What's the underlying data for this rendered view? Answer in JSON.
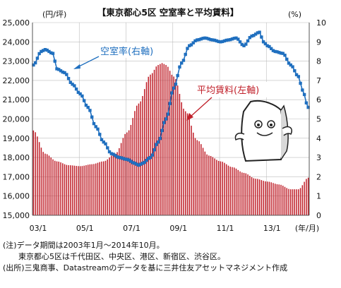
{
  "chart_data": {
    "type": "bar+line",
    "title": "【東京都心5区 空室率と平均賃料】",
    "left_axis": {
      "unit": "(円/坪)",
      "min": 15000,
      "max": 25000,
      "step": 1000,
      "ticks": [
        "15,000",
        "16,000",
        "17,000",
        "18,000",
        "19,000",
        "20,000",
        "21,000",
        "22,000",
        "23,000",
        "24,000",
        "25,000"
      ]
    },
    "right_axis": {
      "unit": "(%)",
      "min": 0,
      "max": 10,
      "step": 1,
      "ticks": [
        "0",
        "1",
        "2",
        "3",
        "4",
        "5",
        "6",
        "7",
        "8",
        "9",
        "10"
      ]
    },
    "x_axis": {
      "unit": "(年/月)",
      "ticks": [
        {
          "label": "03/1",
          "index": 0
        },
        {
          "label": "05/1",
          "index": 24
        },
        {
          "label": "07/1",
          "index": 48
        },
        {
          "label": "09/1",
          "index": 72
        },
        {
          "label": "11/1",
          "index": 96
        },
        {
          "label": "13/1",
          "index": 120
        }
      ]
    },
    "months_count": 142,
    "grid": true,
    "rent_series": {
      "name": "平均賃料(左軸)",
      "axis": "left",
      "color": "#c0202a",
      "anchors": [
        [
          0,
          19400
        ],
        [
          6,
          18200
        ],
        [
          12,
          17800
        ],
        [
          18,
          17600
        ],
        [
          24,
          17550
        ],
        [
          30,
          17650
        ],
        [
          36,
          17800
        ],
        [
          42,
          18200
        ],
        [
          48,
          19300
        ],
        [
          54,
          20800
        ],
        [
          60,
          22300
        ],
        [
          64,
          22800
        ],
        [
          66,
          22900
        ],
        [
          68,
          22800
        ],
        [
          72,
          22200
        ],
        [
          78,
          20400
        ],
        [
          84,
          18900
        ],
        [
          90,
          18100
        ],
        [
          96,
          17800
        ],
        [
          102,
          17500
        ],
        [
          108,
          17200
        ],
        [
          114,
          16900
        ],
        [
          120,
          16750
        ],
        [
          126,
          16600
        ],
        [
          132,
          16350
        ],
        [
          136,
          16350
        ],
        [
          141,
          16950
        ]
      ]
    },
    "vacancy_series": {
      "name": "空室率(右軸)",
      "axis": "right",
      "color": "#1f6fbf",
      "anchors": [
        [
          0,
          7.8
        ],
        [
          4,
          8.5
        ],
        [
          6,
          8.6
        ],
        [
          10,
          8.4
        ],
        [
          12,
          7.6
        ],
        [
          16,
          7.4
        ],
        [
          20,
          6.8
        ],
        [
          24,
          6.3
        ],
        [
          28,
          5.6
        ],
        [
          32,
          4.6
        ],
        [
          36,
          3.8
        ],
        [
          40,
          3.2
        ],
        [
          44,
          3.0
        ],
        [
          48,
          2.9
        ],
        [
          52,
          2.7
        ],
        [
          54,
          2.6
        ],
        [
          56,
          2.7
        ],
        [
          60,
          3.0
        ],
        [
          64,
          3.8
        ],
        [
          68,
          5.0
        ],
        [
          72,
          6.6
        ],
        [
          76,
          7.9
        ],
        [
          80,
          8.8
        ],
        [
          84,
          9.1
        ],
        [
          88,
          9.2
        ],
        [
          92,
          9.1
        ],
        [
          96,
          9.0
        ],
        [
          100,
          9.1
        ],
        [
          104,
          9.2
        ],
        [
          108,
          8.8
        ],
        [
          112,
          9.3
        ],
        [
          116,
          9.5
        ],
        [
          118,
          9.0
        ],
        [
          120,
          8.8
        ],
        [
          124,
          8.5
        ],
        [
          128,
          8.4
        ],
        [
          132,
          7.8
        ],
        [
          136,
          7.2
        ],
        [
          138,
          6.5
        ],
        [
          141,
          5.6
        ]
      ]
    },
    "annotations": [
      {
        "text": "空室率(右軸)",
        "series": "vacancy"
      },
      {
        "text": "平均賃料(左軸)",
        "series": "rent"
      }
    ]
  },
  "notes": {
    "line1": "(注)データ期間は2003年1月～2014年10月。",
    "line2": "東京都心5区は千代田区、中央区、港区、新宿区、渋谷区。",
    "line3": "(出所)三鬼商事、Datastreamのデータを基に三井住友アセットマネジメント作成"
  }
}
